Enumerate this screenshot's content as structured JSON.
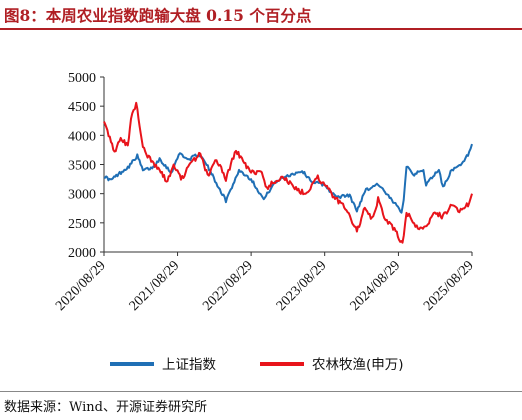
{
  "header": {
    "title": "图8：本周农业指数跑输大盘 0.15 个百分点"
  },
  "footer": {
    "source": "数据来源：Wind、开源证券研究所"
  },
  "colors": {
    "accent": "#b01f24",
    "series_blue": "#1f6fb5",
    "series_red": "#e8141b"
  },
  "chart_data": {
    "type": "line",
    "title": "",
    "xlabel": "",
    "ylabel": "",
    "ylim": [
      2000,
      5000
    ],
    "yticks": [
      "5000",
      "4500",
      "4000",
      "3500",
      "3000",
      "2500",
      "2000"
    ],
    "xticks": [
      "2020/08/29",
      "2021/08/29",
      "2022/08/29",
      "2023/08/29",
      "2024/08/29",
      "2025/08/29"
    ],
    "xlim": [
      "2020/08/29",
      "2025/08/29"
    ],
    "legend_position": "bottom",
    "grid": false,
    "series": [
      {
        "name": "上证指数",
        "color": "#1f6fb5",
        "points": [
          [
            "2020/08/29",
            3300
          ],
          [
            "2020/10/01",
            3230
          ],
          [
            "2020/11/15",
            3350
          ],
          [
            "2020/12/31",
            3470
          ],
          [
            "2021/02/10",
            3650
          ],
          [
            "2021/03/10",
            3400
          ],
          [
            "2021/05/01",
            3450
          ],
          [
            "2021/06/01",
            3600
          ],
          [
            "2021/07/28",
            3360
          ],
          [
            "2021/09/10",
            3700
          ],
          [
            "2021/10/20",
            3580
          ],
          [
            "2021/12/13",
            3680
          ],
          [
            "2022/01/20",
            3500
          ],
          [
            "2022/03/15",
            3150
          ],
          [
            "2022/04/26",
            2880
          ],
          [
            "2022/06/30",
            3400
          ],
          [
            "2022/08/29",
            3250
          ],
          [
            "2022/10/31",
            2900
          ],
          [
            "2022/12/15",
            3150
          ],
          [
            "2023/02/01",
            3280
          ],
          [
            "2023/05/09",
            3390
          ],
          [
            "2023/06/30",
            3200
          ],
          [
            "2023/08/29",
            3150
          ],
          [
            "2023/10/23",
            2940
          ],
          [
            "2023/12/31",
            2970
          ],
          [
            "2024/02/05",
            2700
          ],
          [
            "2024/03/15",
            3050
          ],
          [
            "2024/05/20",
            3170
          ],
          [
            "2024/07/10",
            2950
          ],
          [
            "2024/09/13",
            2700
          ],
          [
            "2024/09/24",
            2900
          ],
          [
            "2024/10/08",
            3480
          ],
          [
            "2024/11/15",
            3330
          ],
          [
            "2024/12/31",
            3400
          ],
          [
            "2025/01/13",
            3160
          ],
          [
            "2025/03/18",
            3420
          ],
          [
            "2025/04/07",
            3100
          ],
          [
            "2025/05/15",
            3380
          ],
          [
            "2025/07/10",
            3500
          ],
          [
            "2025/08/15",
            3700
          ],
          [
            "2025/08/29",
            3850
          ]
        ]
      },
      {
        "name": "农林牧渔(申万)",
        "color": "#e8141b",
        "points": [
          [
            "2020/08/29",
            4200
          ],
          [
            "2020/09/15",
            4050
          ],
          [
            "2020/10/20",
            3700
          ],
          [
            "2020/11/20",
            3950
          ],
          [
            "2020/12/25",
            3800
          ],
          [
            "2021/01/10",
            4300
          ],
          [
            "2021/02/05",
            4550
          ],
          [
            "2021/03/10",
            3800
          ],
          [
            "2021/04/20",
            3550
          ],
          [
            "2021/06/01",
            3400
          ],
          [
            "2021/07/10",
            3200
          ],
          [
            "2021/08/10",
            3500
          ],
          [
            "2021/09/15",
            3250
          ],
          [
            "2021/11/01",
            3500
          ],
          [
            "2021/12/20",
            3700
          ],
          [
            "2022/01/25",
            3300
          ],
          [
            "2022/03/10",
            3600
          ],
          [
            "2022/04/26",
            3250
          ],
          [
            "2022/06/15",
            3750
          ],
          [
            "2022/07/20",
            3550
          ],
          [
            "2022/08/29",
            3350
          ],
          [
            "2022/10/15",
            3400
          ],
          [
            "2022/11/15",
            3100
          ],
          [
            "2022/12/20",
            3200
          ],
          [
            "2023/02/01",
            3300
          ],
          [
            "2023/04/15",
            3050
          ],
          [
            "2023/06/01",
            3000
          ],
          [
            "2023/07/20",
            3300
          ],
          [
            "2023/08/29",
            3150
          ],
          [
            "2023/10/25",
            2900
          ],
          [
            "2023/12/15",
            2750
          ],
          [
            "2024/02/05",
            2350
          ],
          [
            "2024/03/15",
            2750
          ],
          [
            "2024/04/20",
            2550
          ],
          [
            "2024/05/20",
            2900
          ],
          [
            "2024/06/20",
            2600
          ],
          [
            "2024/08/15",
            2350
          ],
          [
            "2024/09/18",
            2130
          ],
          [
            "2024/10/08",
            2700
          ],
          [
            "2024/11/15",
            2450
          ],
          [
            "2025/01/10",
            2400
          ],
          [
            "2025/02/20",
            2700
          ],
          [
            "2025/04/07",
            2600
          ],
          [
            "2025/05/15",
            2800
          ],
          [
            "2025/07/10",
            2700
          ],
          [
            "2025/08/15",
            2850
          ],
          [
            "2025/08/29",
            3000
          ]
        ]
      }
    ]
  }
}
